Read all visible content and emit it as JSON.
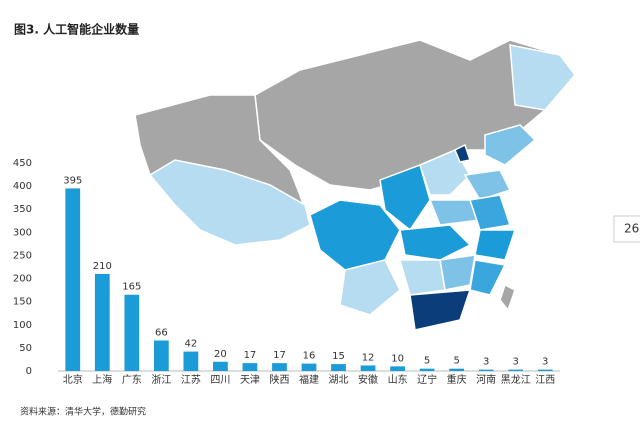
{
  "chart_data": {
    "type": "bar",
    "title": "图3. 人工智能企业数量",
    "categories": [
      "北京",
      "上海",
      "广东",
      "浙江",
      "江苏",
      "四川",
      "天津",
      "陕西",
      "福建",
      "湖北",
      "安徽",
      "山东",
      "辽宁",
      "重庆",
      "河南",
      "黑龙江",
      "江西"
    ],
    "values": [
      395,
      210,
      165,
      66,
      42,
      20,
      17,
      17,
      16,
      15,
      12,
      10,
      5,
      5,
      3,
      3,
      3
    ],
    "color": "#1b9bd7",
    "ylim": [
      0,
      450
    ],
    "yticks": [
      0,
      50,
      100,
      150,
      200,
      250,
      300,
      350,
      400,
      450
    ],
    "source": "资料来源：清华大学，德勤研究"
  },
  "overlay": "26"
}
